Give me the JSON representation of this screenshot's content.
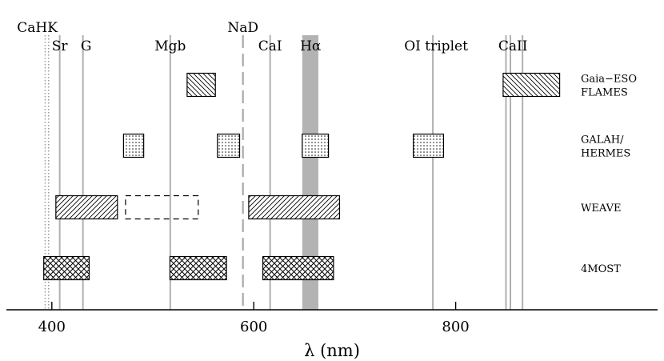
{
  "chart_data": {
    "type": "range-bars",
    "xlabel": "λ (nm)",
    "xlim": [
      355,
      1000
    ],
    "x_ticks": [
      400,
      600,
      800
    ],
    "x_tick_labels": [
      "400",
      "600",
      "800"
    ],
    "grid": false,
    "spectral_lines": [
      {
        "label": "CaHK",
        "wavelength": [
          393.4,
          396.8
        ],
        "style": "dotted"
      },
      {
        "label": "Sr",
        "wavelength": [
          407.8
        ]
      },
      {
        "label": "G",
        "wavelength": [
          430.8
        ]
      },
      {
        "label": "Mgb",
        "wavelength": [
          517.3
        ]
      },
      {
        "label": "NaD",
        "wavelength": [
          589.3
        ],
        "style": "dashed"
      },
      {
        "label": "CaI",
        "wavelength": [
          616.2
        ]
      },
      {
        "label": "Hα",
        "wavelength": [
          656.3
        ],
        "style": "band",
        "band": [
          648,
          664
        ]
      },
      {
        "label": "OI triplet",
        "wavelength": [
          777.4
        ]
      },
      {
        "label": "CaII",
        "wavelength": [
          849.8,
          854.2,
          866.2
        ]
      }
    ],
    "surveys": [
      {
        "name_lines": [
          "Gaia−ESO",
          "FLAMES"
        ],
        "pattern": "diagonal-back",
        "ranges": [
          [
            534,
            562
          ],
          [
            847,
            903
          ]
        ]
      },
      {
        "name_lines": [
          "GALAH/",
          "HERMES"
        ],
        "pattern": "dots",
        "ranges": [
          [
            471,
            491
          ],
          [
            564,
            586
          ],
          [
            648,
            674
          ],
          [
            758,
            788
          ]
        ]
      },
      {
        "name_lines": [
          "WEAVE"
        ],
        "pattern": "diagonal-forward",
        "ranges": [
          [
            404,
            465
          ],
          [
            595,
            685
          ]
        ],
        "dashed_ranges": [
          [
            473,
            545
          ]
        ]
      },
      {
        "name_lines": [
          "4MOST"
        ],
        "pattern": "crosshatch",
        "ranges": [
          [
            392,
            437
          ],
          [
            517,
            573
          ],
          [
            609,
            679
          ]
        ]
      }
    ]
  }
}
